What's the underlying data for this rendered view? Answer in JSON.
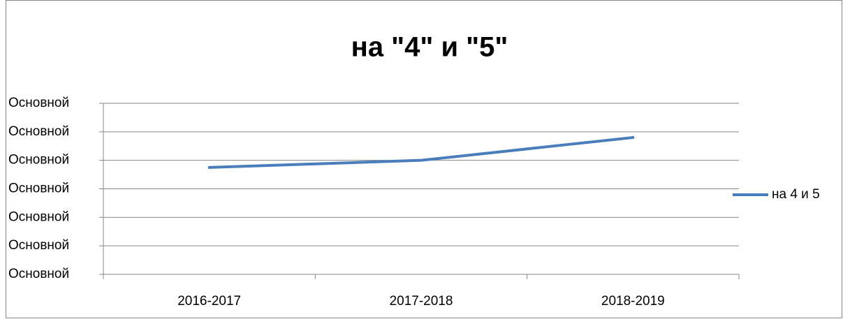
{
  "chart_data": {
    "type": "line",
    "title": "на \"4\" и \"5\"",
    "categories": [
      "2016-2017",
      "2017-2018",
      "2018-2019"
    ],
    "series": [
      {
        "name": "на 4 и 5",
        "color": "#4a7ebb",
        "values": [
          3.75,
          4,
          4.8
        ]
      }
    ],
    "ylim": [
      0,
      6
    ],
    "yticks": [
      {
        "value": 0,
        "label": "Основной"
      },
      {
        "value": 1,
        "label": "Основной"
      },
      {
        "value": 2,
        "label": "Основной"
      },
      {
        "value": 3,
        "label": "Основной"
      },
      {
        "value": 4,
        "label": "Основной"
      },
      {
        "value": 5,
        "label": "Основной"
      },
      {
        "value": 6,
        "label": "Основной"
      }
    ],
    "grid": true,
    "legend": "right"
  }
}
